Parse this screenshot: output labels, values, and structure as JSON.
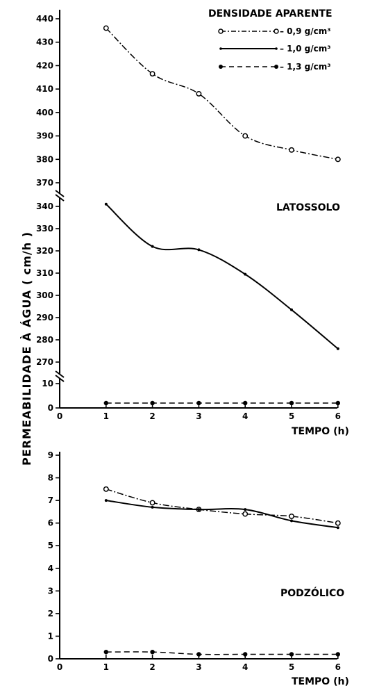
{
  "legend": {
    "title": "DENSIDADE  APARENTE",
    "items": [
      {
        "label": "– 0,9  g/cm³",
        "marker": "open-circle",
        "line": "dash-dot"
      },
      {
        "label": "– 1,0  g/cm³",
        "marker": "small-dot",
        "line": "solid"
      },
      {
        "label": "– 1,3  g/cm³",
        "marker": "filled-circle",
        "line": "dashed"
      }
    ]
  },
  "ylabel": "PERMEABILIDADE  À  ÁGUA   ( cm/h )",
  "chart_data": [
    {
      "type": "line",
      "panel": "top",
      "annotation": "LATOSSOLO",
      "xlabel": "TEMPO (h)",
      "xticks": [
        0,
        1,
        2,
        3,
        4,
        5,
        6
      ],
      "x": [
        1,
        2,
        3,
        4,
        5,
        6
      ],
      "axis_break": true,
      "yticks_upper": [
        370,
        380,
        390,
        400,
        410,
        420,
        430,
        440
      ],
      "yticks_middle": [
        270,
        280,
        290,
        300,
        310,
        320,
        330,
        340
      ],
      "yticks_lower": [
        0,
        10
      ],
      "series": [
        {
          "name": "0,9 g/cm³",
          "values": [
            436,
            416.5,
            408,
            390,
            384,
            380
          ]
        },
        {
          "name": "1,0 g/cm³",
          "values": [
            341,
            322,
            320.5,
            309.5,
            293.5,
            276
          ]
        },
        {
          "name": "1,3 g/cm³",
          "values": [
            2,
            2,
            2,
            2,
            2,
            2
          ]
        }
      ]
    },
    {
      "type": "line",
      "panel": "bottom",
      "annotation": "PODZÓLICO",
      "xlabel": "TEMPO (h)",
      "xticks": [
        0,
        1,
        2,
        3,
        4,
        5,
        6
      ],
      "x": [
        1,
        2,
        3,
        4,
        5,
        6
      ],
      "ylim": [
        0,
        9
      ],
      "yticks": [
        0,
        1,
        2,
        3,
        4,
        5,
        6,
        7,
        8,
        9
      ],
      "series": [
        {
          "name": "0,9 g/cm³",
          "values": [
            7.5,
            6.9,
            6.6,
            6.4,
            6.3,
            6.0
          ]
        },
        {
          "name": "1,0 g/cm³",
          "values": [
            7.0,
            6.7,
            6.6,
            6.6,
            6.1,
            5.8
          ]
        },
        {
          "name": "1,3 g/cm³",
          "values": [
            0.3,
            0.3,
            0.2,
            0.2,
            0.2,
            0.2
          ]
        }
      ]
    }
  ]
}
